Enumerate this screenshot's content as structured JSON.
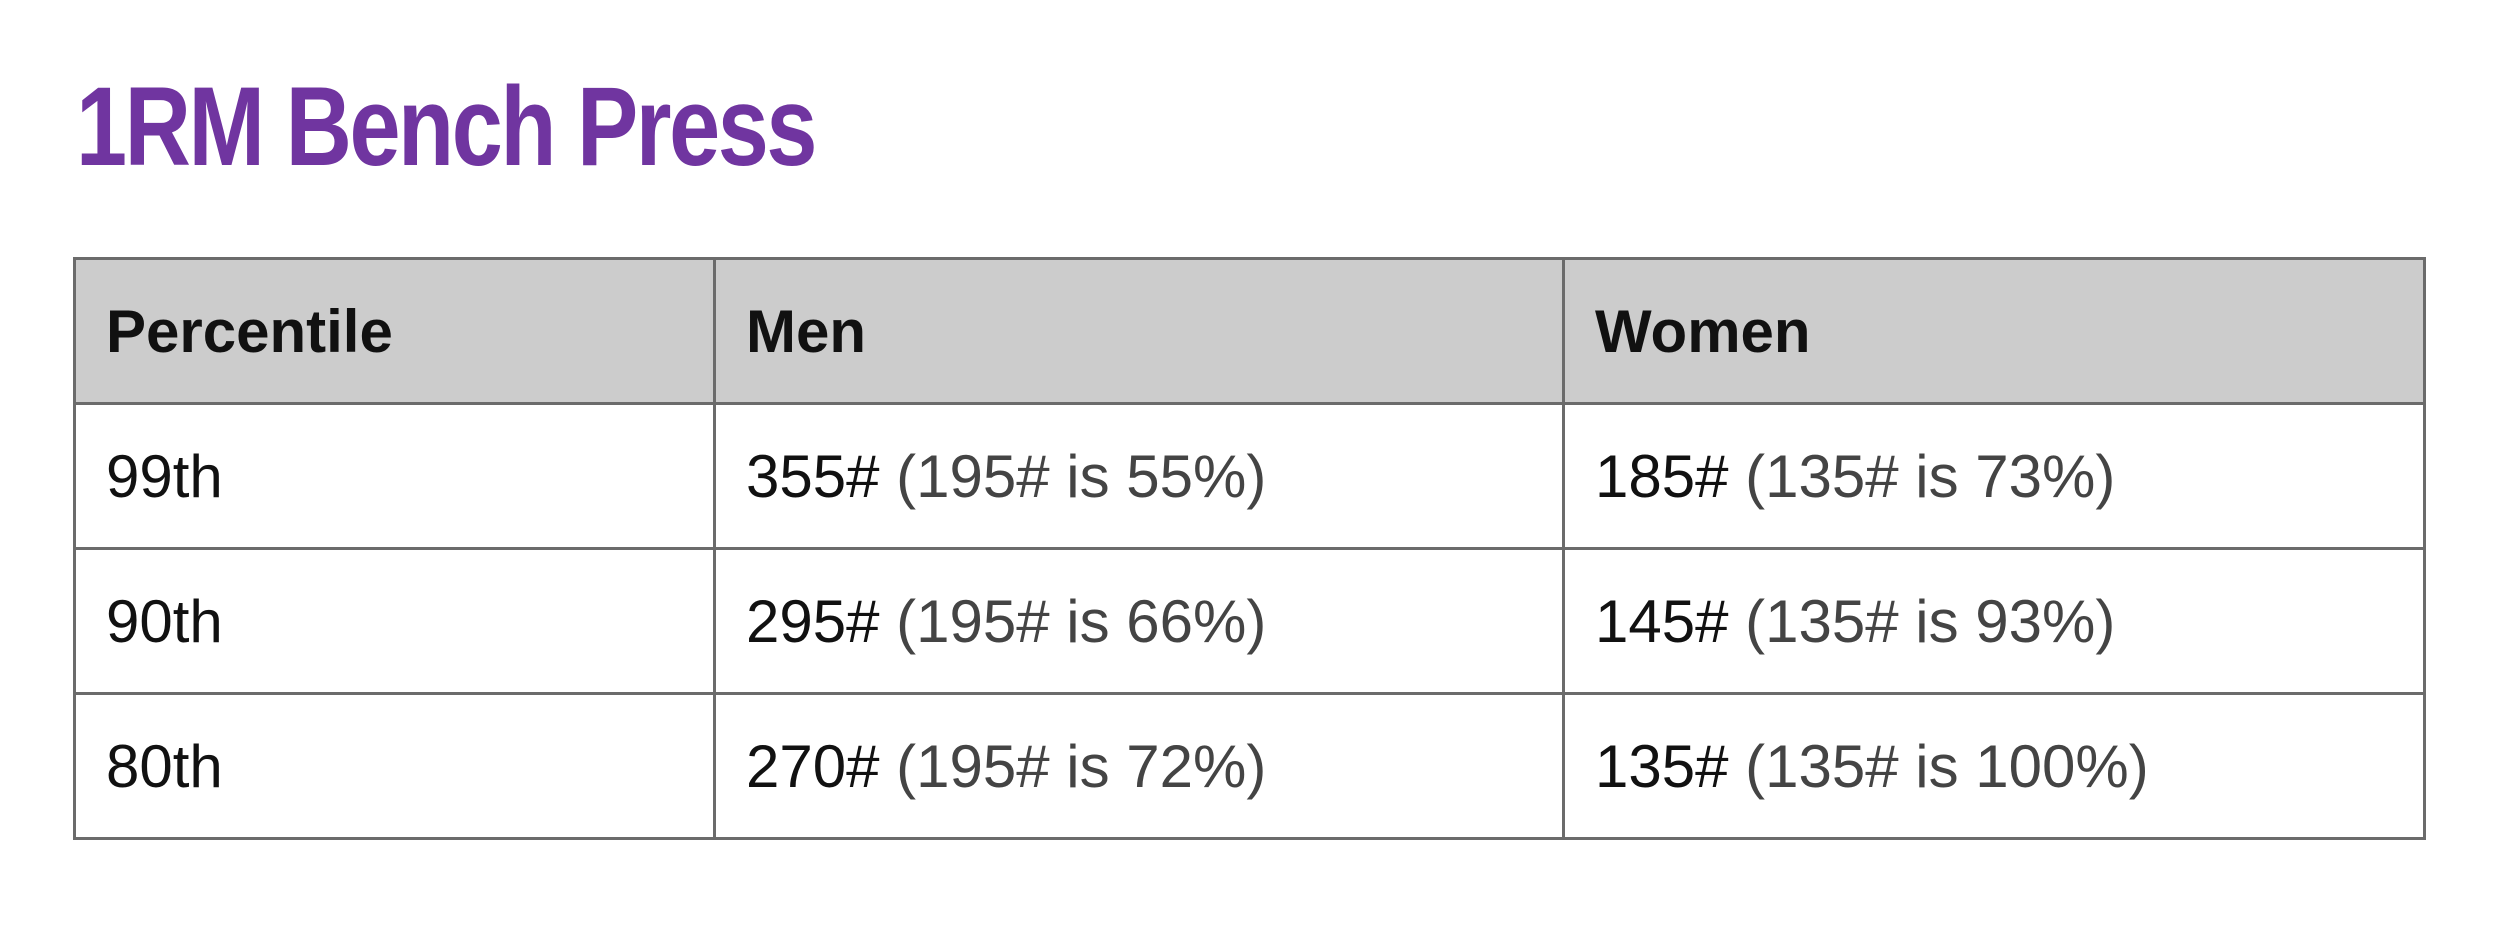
{
  "header": {
    "title": "1RM Bench Press"
  },
  "table": {
    "columns": [
      "Percentile",
      "Men",
      "Women"
    ],
    "rows": [
      {
        "percentile": "99th",
        "men": {
          "weight": "355#",
          "note": "(195# is 55%)"
        },
        "women": {
          "weight": "185#",
          "note": "(135# is 73%)"
        }
      },
      {
        "percentile": "90th",
        "men": {
          "weight": "295#",
          "note": "(195# is 66%)"
        },
        "women": {
          "weight": "145#",
          "note": "(135# is 93%)"
        }
      },
      {
        "percentile": "80th",
        "men": {
          "weight": "270#",
          "note": "(195# is 72%)"
        },
        "women": {
          "weight": "135#",
          "note": "(135# is 100%)"
        }
      }
    ]
  }
}
